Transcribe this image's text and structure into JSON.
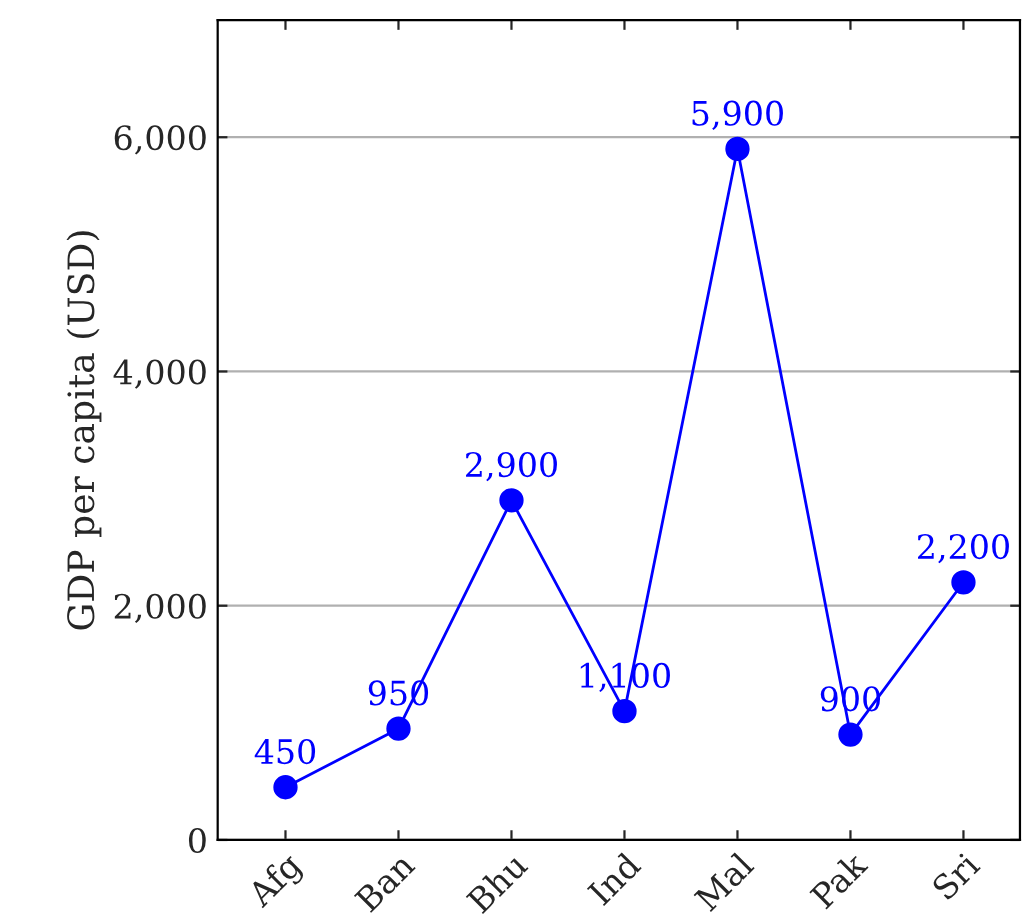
{
  "chart_data": {
    "type": "line",
    "ylabel": "GDP per capita (USD)",
    "categories": [
      "Afg",
      "Ban",
      "Bhu",
      "Ind",
      "Mal",
      "Pak",
      "Sri"
    ],
    "series": [
      {
        "color": "#0000ff",
        "values": [
          450,
          950,
          2900,
          1100,
          5900,
          900,
          2200
        ],
        "value_labels": [
          "450",
          "950",
          "2,900",
          "1,100",
          "5,900",
          "900",
          "2,200"
        ]
      }
    ],
    "ylim": [
      0,
      7000
    ],
    "yticks": [
      0,
      {
        "value": 2000,
        "label": "2,000"
      },
      {
        "value": 4000,
        "label": "4,000"
      },
      {
        "value": 6000,
        "label": "6,000"
      }
    ],
    "grid": "y",
    "marker": "circle",
    "line_style": "solid",
    "legend": false
  }
}
